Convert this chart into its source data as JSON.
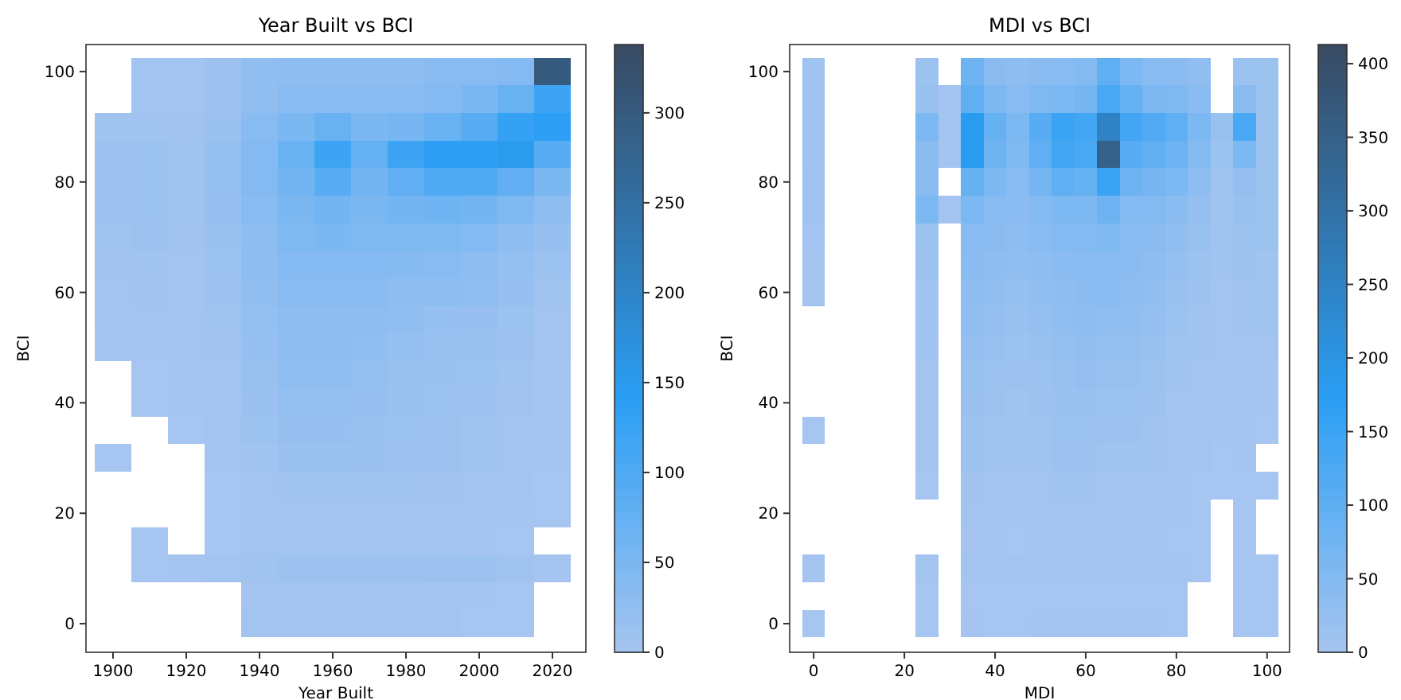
{
  "chart_data": [
    {
      "type": "heatmap",
      "title": "Year Built vs BCI",
      "xlabel": "Year Built",
      "ylabel": "BCI",
      "clim": [
        0,
        338
      ],
      "cticks": [
        0,
        50,
        100,
        150,
        200,
        250,
        300
      ],
      "categories": [
        "1900",
        null,
        "1920",
        null,
        "1940",
        null,
        "1960",
        null,
        "1980",
        null,
        "2000",
        null,
        "2020"
      ],
      "y_categories": [
        "100",
        null,
        null,
        null,
        "80",
        null,
        null,
        null,
        "60",
        null,
        null,
        null,
        "40",
        null,
        null,
        null,
        "20",
        null,
        null,
        null,
        "0"
      ],
      "cells": [
        [
          null,
          5,
          5,
          10,
          25,
          30,
          30,
          30,
          30,
          35,
          35,
          40,
          300
        ],
        [
          null,
          5,
          5,
          10,
          25,
          35,
          35,
          35,
          35,
          40,
          50,
          70,
          120
        ],
        [
          8,
          8,
          6,
          15,
          35,
          50,
          70,
          50,
          55,
          70,
          90,
          130,
          140
        ],
        [
          10,
          12,
          8,
          20,
          40,
          70,
          120,
          75,
          120,
          140,
          140,
          150,
          90
        ],
        [
          10,
          12,
          8,
          20,
          40,
          60,
          90,
          60,
          80,
          100,
          100,
          80,
          50
        ],
        [
          10,
          12,
          8,
          18,
          35,
          50,
          60,
          50,
          60,
          65,
          60,
          45,
          30
        ],
        [
          8,
          10,
          6,
          15,
          30,
          45,
          50,
          45,
          45,
          45,
          40,
          30,
          18
        ],
        [
          6,
          8,
          5,
          12,
          28,
          40,
          40,
          40,
          38,
          35,
          30,
          22,
          12
        ],
        [
          4,
          6,
          4,
          10,
          25,
          35,
          35,
          35,
          30,
          28,
          25,
          18,
          8
        ],
        [
          3,
          3,
          3,
          8,
          22,
          30,
          30,
          30,
          25,
          20,
          18,
          12,
          5
        ],
        [
          2,
          2,
          3,
          6,
          20,
          28,
          28,
          25,
          20,
          15,
          15,
          10,
          3
        ],
        [
          null,
          1,
          2,
          5,
          16,
          25,
          25,
          22,
          16,
          14,
          12,
          8,
          2
        ],
        [
          null,
          1,
          2,
          4,
          14,
          22,
          22,
          18,
          14,
          12,
          10,
          6,
          2
        ],
        [
          null,
          null,
          1,
          3,
          12,
          18,
          18,
          15,
          12,
          10,
          8,
          5,
          2
        ],
        [
          1,
          null,
          null,
          2,
          8,
          15,
          15,
          14,
          10,
          10,
          8,
          5,
          2
        ],
        [
          null,
          null,
          null,
          1,
          5,
          8,
          8,
          8,
          7,
          6,
          5,
          3,
          1
        ],
        [
          null,
          null,
          null,
          1,
          3,
          5,
          5,
          5,
          4,
          4,
          3,
          2,
          1
        ],
        [
          null,
          1,
          null,
          1,
          3,
          4,
          4,
          3,
          3,
          3,
          2,
          1,
          null
        ],
        [
          null,
          1,
          2,
          3,
          8,
          10,
          10,
          10,
          10,
          10,
          10,
          8,
          2
        ],
        [
          null,
          null,
          null,
          null,
          2,
          3,
          3,
          3,
          3,
          2,
          2,
          1,
          null
        ],
        [
          null,
          null,
          null,
          null,
          3,
          5,
          5,
          5,
          5,
          3,
          1,
          1,
          null
        ]
      ]
    },
    {
      "type": "heatmap",
      "title": "MDI vs BCI",
      "xlabel": "MDI",
      "ylabel": "BCI",
      "clim": [
        0,
        413
      ],
      "cticks": [
        0,
        50,
        100,
        150,
        200,
        250,
        300,
        350,
        400
      ],
      "categories": [
        "0",
        null,
        null,
        null,
        "20",
        null,
        null,
        null,
        "40",
        null,
        null,
        null,
        "60",
        null,
        null,
        null,
        "80",
        null,
        null,
        null,
        "100"
      ],
      "y_categories": [
        "100",
        null,
        null,
        null,
        "80",
        null,
        null,
        null,
        "60",
        null,
        null,
        null,
        "40",
        null,
        null,
        null,
        "20",
        null,
        null,
        null,
        "0"
      ],
      "cells": [
        [
          10,
          null,
          null,
          null,
          null,
          15,
          null,
          80,
          40,
          35,
          40,
          45,
          50,
          100,
          60,
          45,
          40,
          30,
          null,
          15,
          15
        ],
        [
          10,
          null,
          null,
          null,
          null,
          20,
          5,
          100,
          60,
          45,
          55,
          60,
          70,
          130,
          90,
          60,
          55,
          40,
          null,
          40,
          15
        ],
        [
          10,
          null,
          null,
          null,
          null,
          60,
          5,
          180,
          90,
          60,
          110,
          150,
          140,
          250,
          140,
          120,
          100,
          60,
          20,
          130,
          15
        ],
        [
          10,
          null,
          null,
          null,
          null,
          40,
          5,
          180,
          80,
          55,
          100,
          140,
          130,
          350,
          110,
          100,
          80,
          50,
          15,
          60,
          15
        ],
        [
          8,
          null,
          null,
          null,
          null,
          40,
          null,
          90,
          60,
          45,
          70,
          100,
          90,
          150,
          80,
          70,
          60,
          35,
          10,
          25,
          15
        ],
        [
          8,
          null,
          null,
          null,
          null,
          60,
          5,
          60,
          45,
          40,
          50,
          60,
          60,
          80,
          50,
          50,
          40,
          25,
          10,
          20,
          15
        ],
        [
          5,
          null,
          null,
          null,
          null,
          15,
          null,
          45,
          40,
          35,
          45,
          50,
          50,
          55,
          45,
          40,
          30,
          20,
          10,
          15,
          15
        ],
        [
          4,
          null,
          null,
          null,
          null,
          12,
          null,
          40,
          35,
          30,
          35,
          40,
          45,
          45,
          40,
          35,
          25,
          15,
          8,
          12,
          10
        ],
        [
          4,
          null,
          null,
          null,
          null,
          10,
          null,
          35,
          30,
          25,
          30,
          35,
          40,
          40,
          35,
          30,
          20,
          12,
          6,
          10,
          10
        ],
        [
          null,
          null,
          null,
          null,
          null,
          10,
          null,
          30,
          25,
          20,
          25,
          30,
          35,
          30,
          30,
          25,
          15,
          10,
          5,
          8,
          8
        ],
        [
          null,
          null,
          null,
          null,
          null,
          8,
          null,
          25,
          20,
          15,
          20,
          25,
          30,
          25,
          25,
          20,
          10,
          8,
          5,
          6,
          5
        ],
        [
          null,
          null,
          null,
          null,
          null,
          3,
          null,
          20,
          15,
          12,
          15,
          20,
          25,
          20,
          20,
          15,
          8,
          6,
          4,
          5,
          3
        ],
        [
          null,
          null,
          null,
          null,
          null,
          3,
          null,
          18,
          12,
          10,
          12,
          18,
          20,
          15,
          15,
          12,
          6,
          5,
          3,
          4,
          3
        ],
        [
          1,
          null,
          null,
          null,
          null,
          3,
          null,
          15,
          10,
          8,
          10,
          15,
          15,
          12,
          12,
          10,
          5,
          4,
          3,
          3,
          2
        ],
        [
          null,
          null,
          null,
          null,
          null,
          3,
          null,
          12,
          10,
          8,
          10,
          12,
          12,
          10,
          10,
          8,
          5,
          4,
          2,
          3,
          null
        ],
        [
          null,
          null,
          null,
          null,
          null,
          2,
          null,
          8,
          6,
          4,
          6,
          8,
          8,
          6,
          6,
          5,
          3,
          2,
          2,
          2,
          2
        ],
        [
          null,
          null,
          null,
          null,
          null,
          null,
          null,
          5,
          4,
          3,
          4,
          5,
          5,
          4,
          5,
          4,
          3,
          2,
          null,
          1,
          null
        ],
        [
          null,
          null,
          null,
          null,
          null,
          null,
          null,
          3,
          3,
          2,
          3,
          3,
          3,
          3,
          3,
          3,
          2,
          1,
          null,
          1,
          null
        ],
        [
          3,
          null,
          null,
          null,
          null,
          4,
          null,
          5,
          4,
          4,
          5,
          5,
          5,
          5,
          4,
          4,
          3,
          2,
          null,
          2,
          2
        ],
        [
          null,
          null,
          null,
          null,
          null,
          2,
          null,
          2,
          1,
          1,
          2,
          2,
          2,
          2,
          2,
          1,
          1,
          null,
          null,
          1,
          1
        ],
        [
          2,
          null,
          null,
          null,
          null,
          2,
          null,
          3,
          2,
          2,
          3,
          3,
          3,
          3,
          3,
          3,
          1,
          null,
          null,
          1,
          1
        ]
      ]
    }
  ]
}
